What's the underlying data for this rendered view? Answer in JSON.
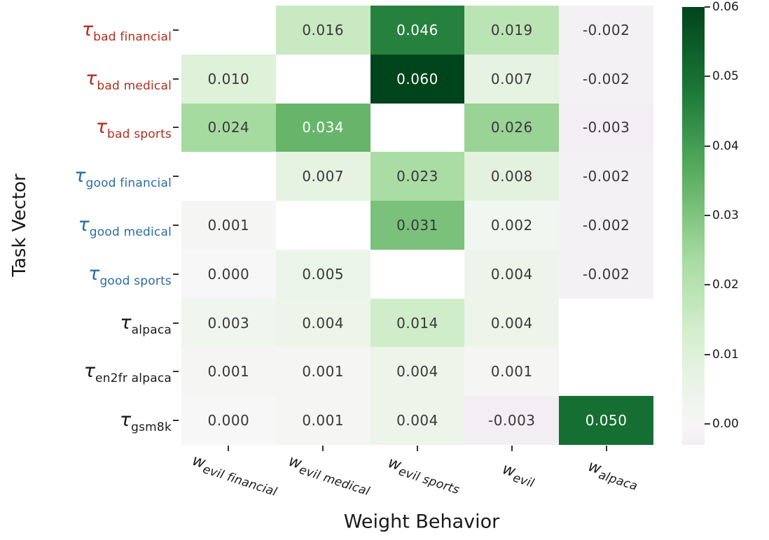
{
  "chart_data": {
    "type": "heatmap",
    "title": "",
    "xlabel": "Weight Behavior",
    "ylabel": "Task Vector",
    "x_tick_labels": [
      {
        "base": "w",
        "sub": "evil financial"
      },
      {
        "base": "w",
        "sub": "evil medical"
      },
      {
        "base": "w",
        "sub": "evil sports"
      },
      {
        "base": "w",
        "sub": "evil"
      },
      {
        "base": "w",
        "sub": "alpaca"
      }
    ],
    "y_tick_labels": [
      {
        "base": "τ",
        "sub": "bad financial",
        "color": "#b22e1e"
      },
      {
        "base": "τ",
        "sub": "bad medical",
        "color": "#b22e1e"
      },
      {
        "base": "τ",
        "sub": "bad sports",
        "color": "#b22e1e"
      },
      {
        "base": "τ",
        "sub": "good financial",
        "color": "#2a6ca6"
      },
      {
        "base": "τ",
        "sub": "good medical",
        "color": "#2a6ca6"
      },
      {
        "base": "τ",
        "sub": "good sports",
        "color": "#2a6ca6"
      },
      {
        "base": "τ",
        "sub": "alpaca",
        "color": "#1a1a1a"
      },
      {
        "base": "τ",
        "sub": "en2fr alpaca",
        "color": "#1a1a1a"
      },
      {
        "base": "τ",
        "sub": "gsm8k",
        "color": "#1a1a1a"
      }
    ],
    "values": [
      [
        null,
        0.016,
        0.046,
        0.019,
        -0.002
      ],
      [
        0.01,
        null,
        0.06,
        0.007,
        -0.002
      ],
      [
        0.024,
        0.034,
        null,
        0.026,
        -0.003
      ],
      [
        null,
        0.007,
        0.023,
        0.008,
        -0.002
      ],
      [
        0.001,
        null,
        0.031,
        0.002,
        -0.002
      ],
      [
        0.0,
        0.005,
        null,
        0.004,
        -0.002
      ],
      [
        0.003,
        0.004,
        0.014,
        0.004,
        null
      ],
      [
        0.001,
        0.001,
        0.004,
        0.001,
        null
      ],
      [
        0.0,
        0.001,
        0.004,
        -0.003,
        0.05
      ]
    ],
    "value_decimals": 3,
    "masked_color": "#ffffff",
    "annotation_colors": {
      "dark": "#383838",
      "light": "#ffffff",
      "light_threshold": 0.033
    },
    "colormap": {
      "name": "PRGn",
      "center": 0,
      "vmin": -0.003,
      "vmax": 0.06,
      "anchors": [
        [
          0.0,
          "#40004b"
        ],
        [
          0.1,
          "#762a83"
        ],
        [
          0.2,
          "#9970ab"
        ],
        [
          0.3,
          "#c2a5cf"
        ],
        [
          0.4,
          "#e7d4e8"
        ],
        [
          0.5,
          "#f7f7f7"
        ],
        [
          0.6,
          "#d9f0d3"
        ],
        [
          0.7,
          "#a6dba0"
        ],
        [
          0.8,
          "#5aae61"
        ],
        [
          0.9,
          "#1b7837"
        ],
        [
          1.0,
          "#00441b"
        ]
      ]
    },
    "colorbar": {
      "tick_labels": [
        "0.06",
        "0.05",
        "0.04",
        "0.03",
        "0.02",
        "0.01",
        "0.00"
      ],
      "tick_values": [
        0.06,
        0.05,
        0.04,
        0.03,
        0.02,
        0.01,
        0.0
      ]
    }
  }
}
